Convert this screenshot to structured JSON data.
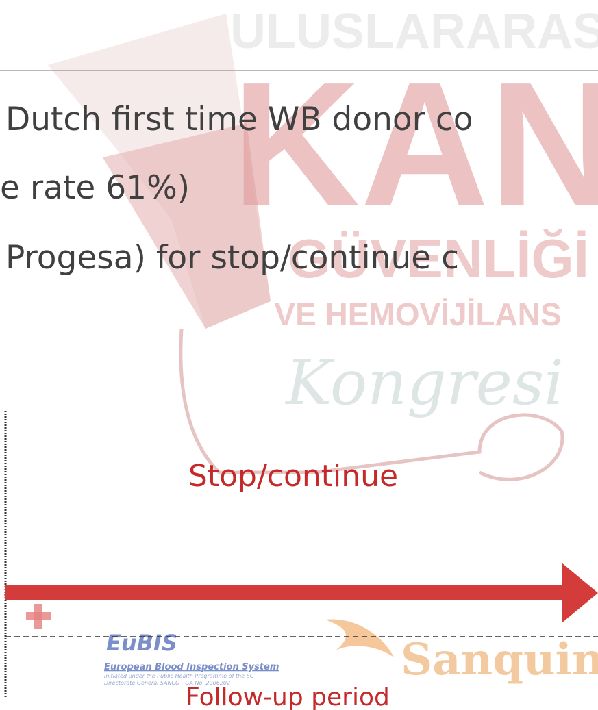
{
  "watermark": {
    "line1": "ULUSLARARASI",
    "line2": "KAN",
    "line3": "GÜVENLİĞİ",
    "line4": "VE HEMOVİJİLANS",
    "line5": "Kongresi"
  },
  "body": {
    "lines": [
      "Dutch first time WB donor co",
      "e rate 61%)",
      "Progesa) for stop/continue c"
    ]
  },
  "diagram": {
    "stop_label": "Stop/continue",
    "period_label": "Follow-up period"
  },
  "logos": {
    "eubis": {
      "name": "EuBIS",
      "full_name": "European Blood Inspection System",
      "note1": "Initiated under the Public Health Programme of the EC",
      "note2": "Directorate General SANCO - GA No. 2006202"
    },
    "sanquin": "Sanquin"
  }
}
